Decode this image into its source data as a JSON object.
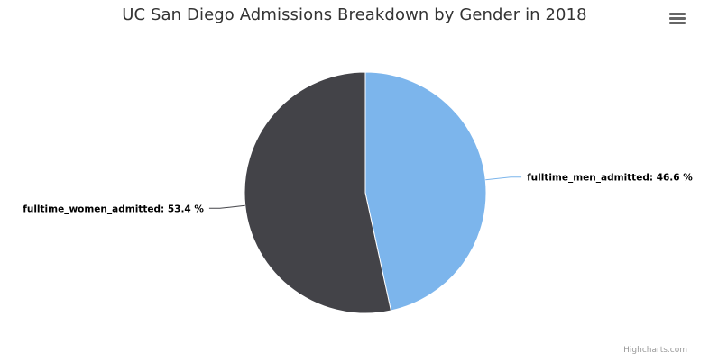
{
  "chart_data": {
    "type": "pie",
    "title": "UC San Diego Admissions Breakdown by Gender in 2018",
    "slices": [
      {
        "name": "fulltime_men_admitted",
        "value": 46.6,
        "color": "#7cb5ec",
        "label": "fulltime_men_admitted: 46.6 %"
      },
      {
        "name": "fulltime_women_admitted",
        "value": 53.4,
        "color": "#434348",
        "label": "fulltime_women_admitted: 53.4 %"
      }
    ],
    "unit": "%"
  },
  "header": {
    "menu_icon": "hamburger-menu-icon"
  },
  "credits": {
    "text": "Highcharts.com"
  }
}
